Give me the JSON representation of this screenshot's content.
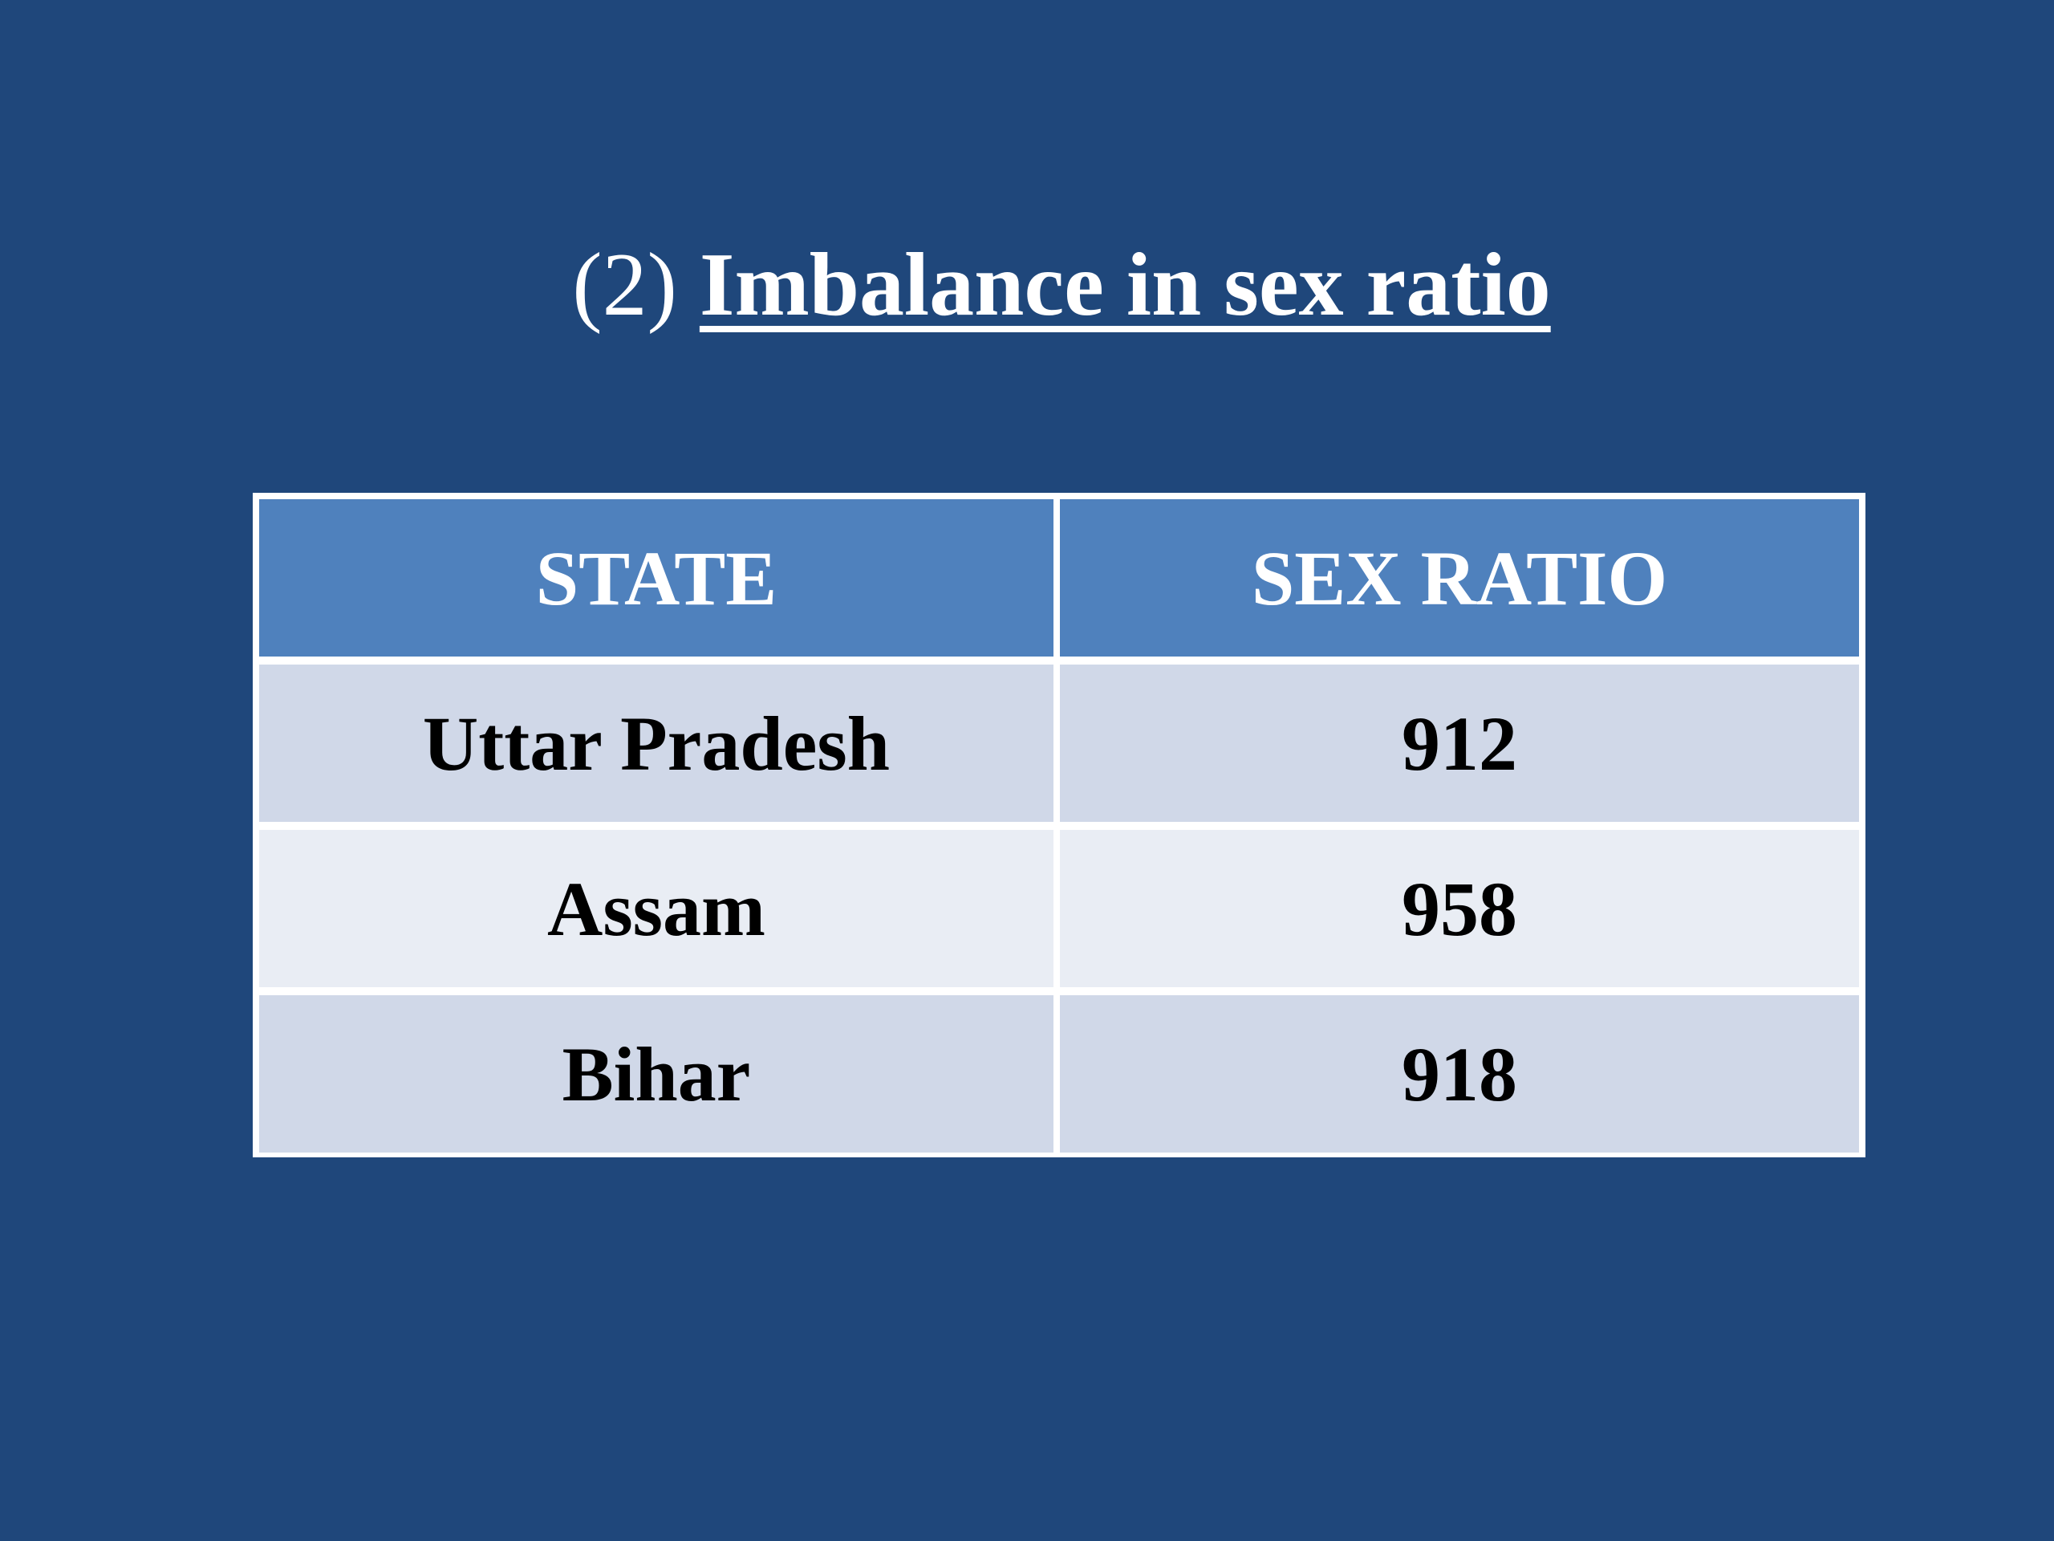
{
  "title": {
    "number": "(2)",
    "text": "Imbalance in sex ratio"
  },
  "table": {
    "headers": [
      "STATE",
      "SEX RATIO"
    ],
    "rows": [
      [
        "Uttar Pradesh",
        "912"
      ],
      [
        "Assam",
        "958"
      ],
      [
        "Bihar",
        "918"
      ]
    ]
  },
  "colors": {
    "background": "#1f477b",
    "header": "#4f81bd",
    "row_dark": "#d0d8e8",
    "row_light": "#e9edf4"
  }
}
